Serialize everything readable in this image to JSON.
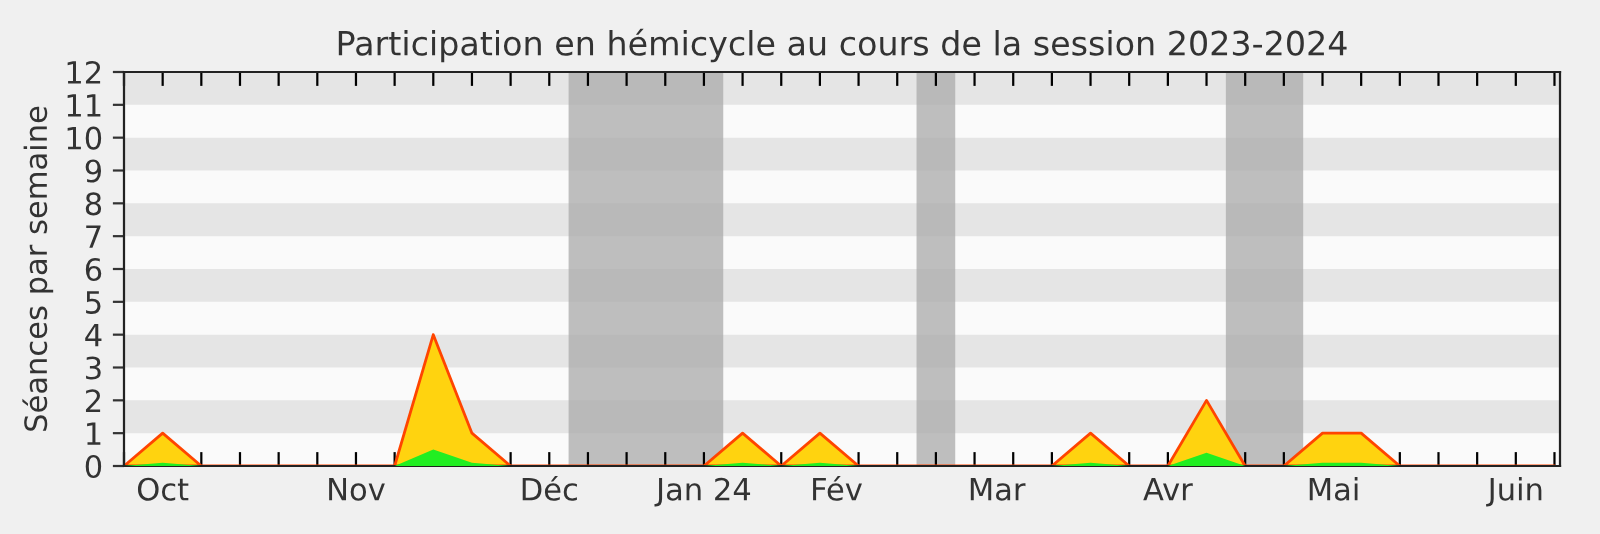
{
  "chart_data": {
    "type": "area",
    "title": "Participation en hémicycle au cours de la session 2023-2024",
    "ylabel": "Séances par semaine",
    "x": [
      "2023-09-25",
      "2023-10-02",
      "2023-10-09",
      "2023-10-16",
      "2023-10-23",
      "2023-10-30",
      "2023-11-06",
      "2023-11-13",
      "2023-11-20",
      "2023-11-27",
      "2023-12-04",
      "2023-12-11",
      "2023-12-18",
      "2023-12-25",
      "2024-01-01",
      "2024-01-08",
      "2024-01-15",
      "2024-01-22",
      "2024-01-29",
      "2024-02-05",
      "2024-02-12",
      "2024-02-19",
      "2024-02-26",
      "2024-03-04",
      "2024-03-11",
      "2024-03-18",
      "2024-03-25",
      "2024-04-01",
      "2024-04-08",
      "2024-04-15",
      "2024-04-22",
      "2024-04-29",
      "2024-05-06",
      "2024-05-13",
      "2024-05-20",
      "2024-05-27",
      "2024-06-03",
      "2024-06-10"
    ],
    "series": [
      {
        "color": "#ffd30f",
        "values": [
          0,
          1,
          0,
          0,
          0,
          0,
          0,
          0,
          4,
          1,
          0,
          0,
          0,
          0,
          0,
          0,
          1,
          0,
          1,
          0,
          0,
          0,
          0,
          0,
          0,
          1,
          0,
          0,
          2,
          0,
          0,
          1,
          1,
          0,
          0,
          0,
          0,
          0
        ]
      },
      {
        "color": "#22ee22",
        "values": [
          0,
          0.1,
          0,
          0,
          0,
          0,
          0,
          0,
          0.5,
          0.1,
          0,
          0,
          0,
          0,
          0,
          0,
          0.1,
          0,
          0.1,
          0,
          0,
          0,
          0,
          0,
          0,
          0.1,
          0,
          0,
          0.4,
          0,
          0,
          0.1,
          0.1,
          0,
          0,
          0,
          0,
          0
        ]
      }
    ],
    "xlim": [
      "2023-09-25",
      "2024-06-11"
    ],
    "ylim": [
      0,
      12
    ],
    "yticks": [
      0,
      1,
      2,
      3,
      4,
      5,
      6,
      7,
      8,
      9,
      10,
      11,
      12
    ],
    "xticks": [
      {
        "value": "2023-09-25",
        "label": null
      },
      {
        "value": "2023-10-02",
        "label": null
      },
      {
        "value": "2023-10-09",
        "label": null
      },
      {
        "value": "2023-10-16",
        "label": null
      },
      {
        "value": "2023-10-23",
        "label": null
      },
      {
        "value": "2023-10-30",
        "label": null
      },
      {
        "value": "2023-11-06",
        "label": null
      },
      {
        "value": "2023-11-13",
        "label": null
      },
      {
        "value": "2023-11-20",
        "label": null
      },
      {
        "value": "2023-11-27",
        "label": null
      },
      {
        "value": "2023-12-04",
        "label": null
      },
      {
        "value": "2023-12-11",
        "label": null
      },
      {
        "value": "2023-12-18",
        "label": null
      },
      {
        "value": "2023-12-25",
        "label": null
      },
      {
        "value": "2024-01-01",
        "label": null
      },
      {
        "value": "2024-01-08",
        "label": null
      },
      {
        "value": "2024-01-15",
        "label": null
      },
      {
        "value": "2024-01-22",
        "label": null
      },
      {
        "value": "2024-01-29",
        "label": null
      },
      {
        "value": "2024-02-05",
        "label": null
      },
      {
        "value": "2024-02-12",
        "label": null
      },
      {
        "value": "2024-02-19",
        "label": null
      },
      {
        "value": "2024-02-26",
        "label": null
      },
      {
        "value": "2024-03-04",
        "label": null
      },
      {
        "value": "2024-03-11",
        "label": null
      },
      {
        "value": "2024-03-18",
        "label": null
      },
      {
        "value": "2024-03-25",
        "label": null
      },
      {
        "value": "2024-04-01",
        "label": null
      },
      {
        "value": "2024-04-08",
        "label": null
      },
      {
        "value": "2024-04-15",
        "label": null
      },
      {
        "value": "2024-04-22",
        "label": null
      },
      {
        "value": "2024-04-29",
        "label": null
      },
      {
        "value": "2024-05-06",
        "label": null
      },
      {
        "value": "2024-05-13",
        "label": null
      },
      {
        "value": "2024-05-20",
        "label": null
      },
      {
        "value": "2024-05-27",
        "label": null
      },
      {
        "value": "2024-06-03",
        "label": null
      },
      {
        "value": "2024-06-10",
        "label": null
      },
      {
        "value": "2023-10-02",
        "label": "Oct"
      },
      {
        "value": "2023-11-06",
        "label": "Nov"
      },
      {
        "value": "2023-12-11",
        "label": "Déc"
      },
      {
        "value": "2024-01-08",
        "label": "Jan 24"
      },
      {
        "value": "2024-02-01",
        "label": "Fév"
      },
      {
        "value": "2024-03-01",
        "label": "Mar"
      },
      {
        "value": "2024-04-01",
        "label": "Avr"
      },
      {
        "value": "2024-05-01",
        "label": "Mai"
      },
      {
        "value": "2024-06-03",
        "label": "Juin"
      }
    ],
    "bands": [
      {
        "axis": "y",
        "from": 1,
        "to": 2,
        "color": "#e5e5e5"
      },
      {
        "axis": "y",
        "from": 3,
        "to": 4,
        "color": "#e5e5e5"
      },
      {
        "axis": "y",
        "from": 5,
        "to": 6,
        "color": "#e5e5e5"
      },
      {
        "axis": "y",
        "from": 7,
        "to": 8,
        "color": "#e5e5e5"
      },
      {
        "axis": "y",
        "from": 9,
        "to": 10,
        "color": "#e5e5e5"
      },
      {
        "axis": "y",
        "from": 11,
        "to": 12,
        "color": "#e5e5e5"
      },
      {
        "axis": "x",
        "from": "2023-12-14T12:00",
        "to": "2024-01-11T12:00",
        "color": "#aaaaaa"
      },
      {
        "axis": "x",
        "from": "2024-02-15T12:00",
        "to": "2024-02-22T12:00",
        "color": "#aaaaaa"
      },
      {
        "axis": "x",
        "from": "2024-04-11T12:00",
        "to": "2024-04-25T12:00",
        "color": "#aaaaaa"
      }
    ]
  }
}
